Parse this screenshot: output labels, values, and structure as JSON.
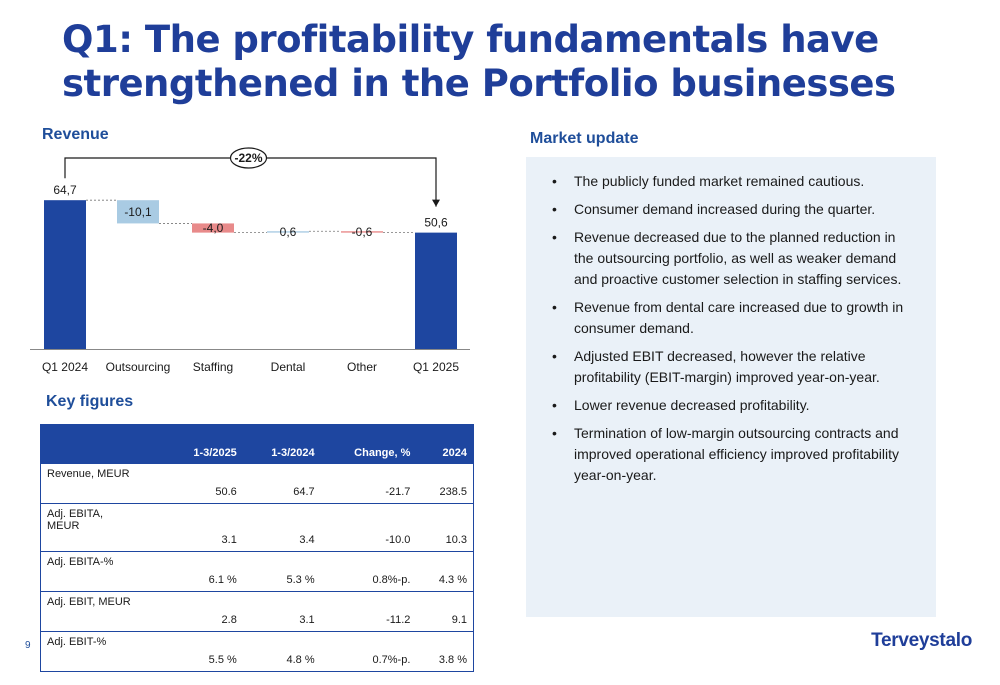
{
  "title": "Q1: The profitability fundamentals have strengthened in the Portfolio businesses",
  "revenue_heading": "Revenue",
  "key_figures_heading": "Key figures",
  "market_heading": "Market update",
  "chart_data": {
    "type": "bar",
    "subtype": "waterfall",
    "categories": [
      "Q1 2024",
      "Outsourcing",
      "Staffing",
      "Dental",
      "Other",
      "Q1 2025"
    ],
    "values": [
      64.7,
      -10.1,
      -4.0,
      0.6,
      -0.6,
      50.6
    ],
    "value_labels": [
      "64,7",
      "-10,1",
      "-4,0",
      "0,6",
      "-0,6",
      "50,6"
    ],
    "annotation": "-22%",
    "colors": {
      "total": "#1e46a0",
      "decrease_outsourcing": "#a9cbe3",
      "decrease": "#e88a8a",
      "increase": "#a9cbe3"
    }
  },
  "key_figures": {
    "headers": [
      "",
      "1-3/2025",
      "1-3/2024",
      "Change, %",
      "2024"
    ],
    "rows": [
      {
        "label": "Revenue, MEUR",
        "values": [
          "50.6",
          "64.7",
          "-21.7",
          "238.5"
        ]
      },
      {
        "label": "Adj. EBITA,\nMEUR",
        "values": [
          "3.1",
          "3.4",
          "-10.0",
          "10.3"
        ]
      },
      {
        "label": "Adj. EBITA-%",
        "values": [
          "6.1 %",
          "5.3 %",
          "0.8%-p.",
          "4.3 %"
        ]
      },
      {
        "label": "Adj. EBIT, MEUR",
        "values": [
          "2.8",
          "3.1",
          "-11.2",
          "9.1"
        ]
      },
      {
        "label": "Adj. EBIT-%",
        "values": [
          "5.5 %",
          "4.8 %",
          "0.7%-p.",
          "3.8 %"
        ]
      }
    ]
  },
  "market_update": [
    "The publicly funded market remained cautious.",
    "Consumer demand increased during the quarter.",
    "Revenue decreased due to the planned reduction in the outsourcing portfolio, as well as weaker demand and proactive customer selection in staffing services.",
    "Revenue from dental care increased due to growth in consumer demand.",
    "Adjusted EBIT decreased, however the relative profitability (EBIT-margin) improved year-on-year.",
    "Lower revenue decreased profitability.",
    "Termination of low-margin outsourcing contracts and improved operational efficiency improved profitability year-on-year."
  ],
  "page_number": "9",
  "logo": "Terveystalo"
}
